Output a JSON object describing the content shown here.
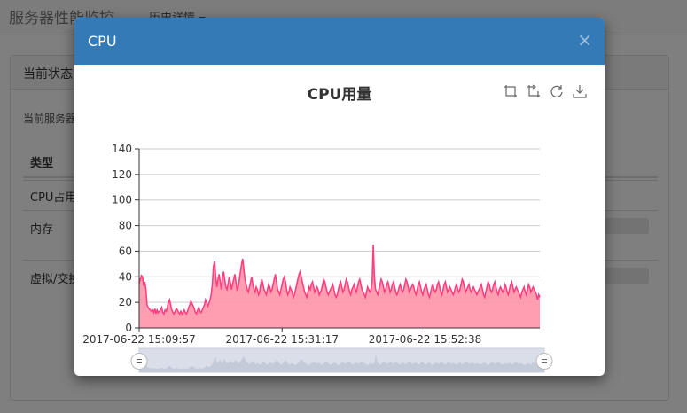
{
  "page": {
    "brand": "服务器性能监控",
    "nav_history": "历史详情",
    "panel_title": "当前状态",
    "panel_desc": "当前服务器",
    "table_header_type": "类型",
    "rows": [
      "CPU占用",
      "内存",
      "虚拟/交换"
    ]
  },
  "modal": {
    "title": "CPU",
    "close_symbol": "×"
  },
  "toolbox": {
    "icons": [
      "zoom-in-icon",
      "zoom-reset-icon",
      "restore-icon",
      "save-image-icon"
    ]
  },
  "colors": {
    "header_bg": "#337ab7",
    "line": "#ff3f7f",
    "area": "#ff94a8"
  },
  "chart_data": {
    "type": "area",
    "title": "CPU用量",
    "ylabel": "",
    "xlabel": "",
    "ylim": [
      0,
      140
    ],
    "yticks": [
      0,
      20,
      40,
      60,
      80,
      100,
      120,
      140
    ],
    "xtick_labels": [
      "2017-06-22 15:09:57",
      "2017-06-22 15:31:17",
      "2017-06-22 15:52:38"
    ],
    "values": [
      35,
      38,
      41,
      40,
      33,
      36,
      30,
      18,
      16,
      15,
      14,
      13,
      14,
      12,
      15,
      11,
      14,
      12,
      13,
      14,
      16,
      12,
      11,
      14,
      13,
      16,
      20,
      22,
      18,
      14,
      12,
      11,
      13,
      15,
      14,
      12,
      11,
      13,
      11,
      12,
      14,
      12,
      11,
      13,
      16,
      18,
      21,
      19,
      17,
      15,
      12,
      11,
      14,
      16,
      13,
      12,
      14,
      16,
      18,
      22,
      20,
      17,
      19,
      22,
      26,
      34,
      48,
      52,
      40,
      32,
      38,
      42,
      36,
      30,
      40,
      44,
      38,
      32,
      30,
      34,
      40,
      36,
      30,
      34,
      38,
      42,
      36,
      30,
      32,
      38,
      44,
      50,
      54,
      46,
      38,
      34,
      30,
      28,
      32,
      36,
      40,
      34,
      30,
      28,
      32,
      30,
      26,
      28,
      34,
      38,
      34,
      30,
      28,
      26,
      30,
      34,
      32,
      28,
      30,
      34,
      38,
      42,
      36,
      30,
      28,
      26,
      30,
      34,
      38,
      40,
      36,
      30,
      26,
      28,
      32,
      30,
      28,
      24,
      26,
      30,
      34,
      38,
      42,
      44,
      40,
      36,
      32,
      28,
      26,
      24,
      28,
      32,
      30,
      34,
      36,
      32,
      28,
      30,
      32,
      30,
      26,
      28,
      30,
      34,
      38,
      36,
      32,
      28,
      26,
      28,
      30,
      32,
      34,
      30,
      26,
      24,
      26,
      30,
      34,
      36,
      32,
      28,
      30,
      34,
      38,
      36,
      32,
      28,
      26,
      30,
      32,
      34,
      30,
      28,
      32,
      36,
      38,
      34,
      30,
      28,
      26,
      24,
      28,
      32,
      30,
      28,
      30,
      36,
      65,
      40,
      30,
      28,
      26,
      30,
      34,
      38,
      36,
      32,
      28,
      30,
      34,
      36,
      32,
      28,
      30,
      34,
      36,
      32,
      28,
      26,
      28,
      32,
      34,
      30,
      28,
      30,
      34,
      38,
      36,
      32,
      28,
      30,
      32,
      34,
      32,
      28,
      26,
      30,
      34,
      36,
      32,
      28,
      26,
      30,
      32,
      34,
      30,
      26,
      24,
      28,
      32,
      34,
      30,
      28,
      30,
      34,
      36,
      32,
      28,
      26,
      30,
      34,
      36,
      32,
      28,
      30,
      32,
      30,
      28,
      26,
      28,
      32,
      34,
      30,
      28,
      30,
      34,
      38,
      36,
      32,
      28,
      30,
      32,
      34,
      30,
      28,
      30,
      32,
      30,
      28,
      26,
      28,
      30,
      32,
      34,
      30,
      26,
      24,
      28,
      32,
      36,
      34,
      30,
      28,
      30,
      34,
      36,
      32,
      28,
      26,
      30,
      32,
      30,
      28,
      30,
      34,
      32,
      28,
      26,
      30,
      34,
      36,
      32,
      28,
      30,
      32,
      30,
      28,
      26,
      24,
      28,
      30,
      32,
      28,
      26,
      30,
      34,
      32,
      28,
      30,
      32,
      30,
      28,
      26,
      22,
      26,
      24
    ]
  }
}
